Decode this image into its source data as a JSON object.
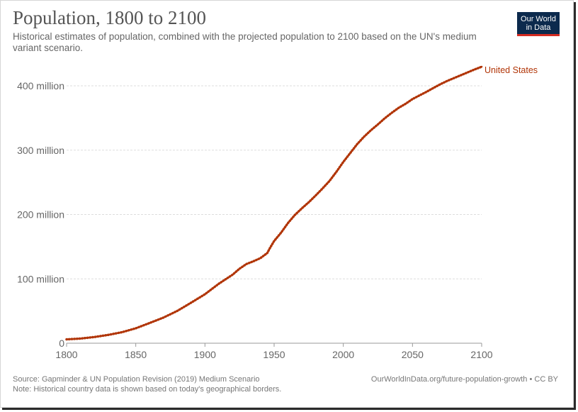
{
  "header": {
    "title": "Population, 1800 to 2100",
    "subtitle": "Historical estimates of population, combined with the projected population to 2100 based on the UN's medium variant scenario."
  },
  "logo": {
    "line1": "Our World",
    "line2": "in Data",
    "bg_color": "#0c2a4d",
    "accent_color": "#d42b21"
  },
  "footer": {
    "source": "Source: Gapminder & UN Population Revision (2019) Medium Scenario",
    "note": "Note: Historical country data is shown based on today's geographical borders.",
    "link": "OurWorldInData.org/future-population-growth • CC BY"
  },
  "chart_data": {
    "type": "line",
    "title": "Population, 1800 to 2100",
    "xlim": [
      1800,
      2100
    ],
    "ylim": [
      0,
      430000000
    ],
    "x_ticks": [
      1800,
      1850,
      1900,
      1950,
      2000,
      2050,
      2100
    ],
    "x_tick_labels": [
      "1800",
      "1850",
      "1900",
      "1950",
      "2000",
      "2050",
      "2100"
    ],
    "y_ticks": [
      0,
      100000000,
      200000000,
      300000000,
      400000000
    ],
    "y_tick_labels": [
      "0",
      "100 million",
      "200 million",
      "300 million",
      "400 million"
    ],
    "grid": "horizontal dashed",
    "series": [
      {
        "name": "United States",
        "color": "#b13507",
        "label_position": "end-of-line",
        "points": [
          [
            1800,
            6000000
          ],
          [
            1810,
            7200000
          ],
          [
            1820,
            9600000
          ],
          [
            1830,
            12900000
          ],
          [
            1840,
            17100000
          ],
          [
            1850,
            23200000
          ],
          [
            1860,
            31400000
          ],
          [
            1870,
            39800000
          ],
          [
            1880,
            50200000
          ],
          [
            1890,
            63000000
          ],
          [
            1900,
            76100000
          ],
          [
            1910,
            92400000
          ],
          [
            1920,
            106500000
          ],
          [
            1925,
            115800000
          ],
          [
            1930,
            123100000
          ],
          [
            1935,
            127300000
          ],
          [
            1940,
            132100000
          ],
          [
            1945,
            140000000
          ],
          [
            1947,
            148000000
          ],
          [
            1950,
            158800000
          ],
          [
            1955,
            171700000
          ],
          [
            1960,
            186700000
          ],
          [
            1965,
            199300000
          ],
          [
            1970,
            209500000
          ],
          [
            1975,
            219000000
          ],
          [
            1980,
            229500000
          ],
          [
            1985,
            240500000
          ],
          [
            1990,
            252100000
          ],
          [
            1995,
            266300000
          ],
          [
            2000,
            281700000
          ],
          [
            2005,
            295500000
          ],
          [
            2010,
            309300000
          ],
          [
            2015,
            320900000
          ],
          [
            2020,
            331000000
          ],
          [
            2025,
            340000000
          ],
          [
            2030,
            349600000
          ],
          [
            2035,
            358000000
          ],
          [
            2040,
            365800000
          ],
          [
            2045,
            372000000
          ],
          [
            2050,
            379400000
          ],
          [
            2055,
            385000000
          ],
          [
            2060,
            390500000
          ],
          [
            2065,
            396500000
          ],
          [
            2070,
            402300000
          ],
          [
            2075,
            407500000
          ],
          [
            2080,
            412000000
          ],
          [
            2085,
            416500000
          ],
          [
            2090,
            421000000
          ],
          [
            2095,
            425500000
          ],
          [
            2100,
            429600000
          ]
        ]
      }
    ]
  }
}
